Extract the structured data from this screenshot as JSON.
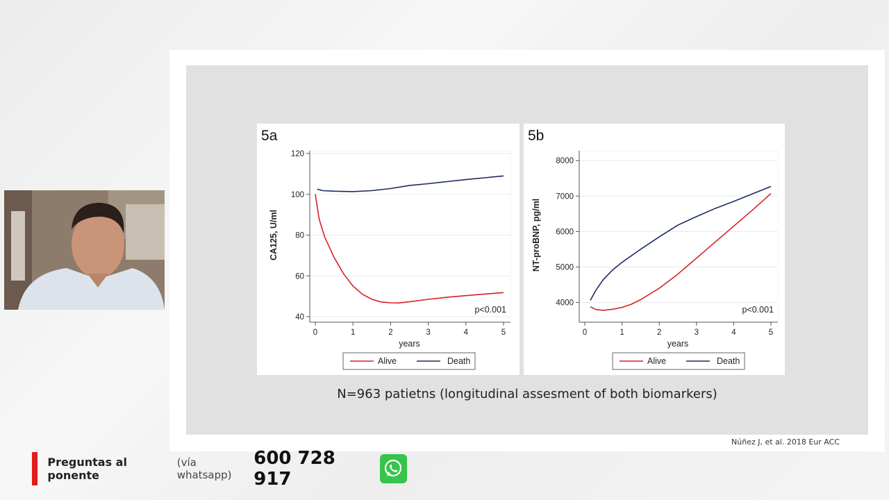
{
  "slide": {
    "caption": "N=963 patietns (longitudinal assesment of both biomarkers)",
    "citation": "Núñez J, et al. 2018 Eur ACC"
  },
  "banner": {
    "title": "Preguntas al ponente",
    "subtitle": "(vía whatsapp)",
    "phone": "600 728 917",
    "icon": "whatsapp-icon",
    "accent_color": "#e21b1b",
    "icon_color": "#36c44a"
  },
  "webcam": {
    "icon": "speaker-video-feed"
  },
  "series_colors": {
    "Alive": "#d62020",
    "Death": "#1a2a5e"
  },
  "chart_data": [
    {
      "type": "line",
      "panel_label": "5a",
      "xlabel": "years",
      "ylabel": "CA125, U/ml",
      "xlim": [
        0,
        5
      ],
      "ylim": [
        40,
        120
      ],
      "xticks": [
        0,
        1,
        2,
        3,
        4,
        5
      ],
      "yticks": [
        40,
        60,
        80,
        100,
        120
      ],
      "annotation": "p<0.001",
      "grid": true,
      "legend": "bottom",
      "series": [
        {
          "name": "Alive",
          "x": [
            0,
            0.1,
            0.25,
            0.5,
            0.75,
            1.0,
            1.25,
            1.5,
            1.75,
            2.0,
            2.2,
            2.5,
            3.0,
            3.5,
            4.0,
            4.5,
            5.0
          ],
          "y": [
            100,
            88,
            79,
            69,
            61,
            55,
            51,
            48.5,
            47.2,
            46.8,
            46.7,
            47.3,
            48.5,
            49.5,
            50.3,
            51.1,
            51.8
          ]
        },
        {
          "name": "Death",
          "x": [
            0.05,
            0.2,
            0.5,
            1.0,
            1.5,
            2.0,
            2.5,
            3.0,
            3.5,
            4.0,
            4.5,
            5.0
          ],
          "y": [
            102.5,
            101.8,
            101.5,
            101.3,
            101.8,
            102.8,
            104.3,
            105.2,
            106.2,
            107.2,
            108.1,
            109.0
          ]
        }
      ]
    },
    {
      "type": "line",
      "panel_label": "5b",
      "xlabel": "years",
      "ylabel": "NT-proBNP, pg/ml",
      "xlim": [
        0,
        5
      ],
      "ylim": [
        3600,
        8200
      ],
      "xticks": [
        0,
        1,
        2,
        3,
        4,
        5
      ],
      "yticks": [
        4000,
        5000,
        6000,
        7000,
        8000
      ],
      "annotation": "p<0.001",
      "grid": true,
      "legend": "bottom",
      "series": [
        {
          "name": "Alive",
          "x": [
            0.15,
            0.3,
            0.5,
            0.75,
            1.0,
            1.25,
            1.5,
            2.0,
            2.5,
            3.0,
            3.5,
            4.0,
            4.5,
            5.0
          ],
          "y": [
            3880,
            3800,
            3780,
            3810,
            3860,
            3950,
            4080,
            4400,
            4800,
            5250,
            5700,
            6150,
            6600,
            7070
          ]
        },
        {
          "name": "Death",
          "x": [
            0.15,
            0.3,
            0.5,
            0.75,
            1.0,
            1.5,
            2.0,
            2.5,
            3.0,
            3.5,
            4.0,
            4.5,
            5.0
          ],
          "y": [
            4060,
            4350,
            4650,
            4920,
            5130,
            5500,
            5850,
            6180,
            6420,
            6650,
            6850,
            7060,
            7270
          ]
        }
      ]
    }
  ]
}
